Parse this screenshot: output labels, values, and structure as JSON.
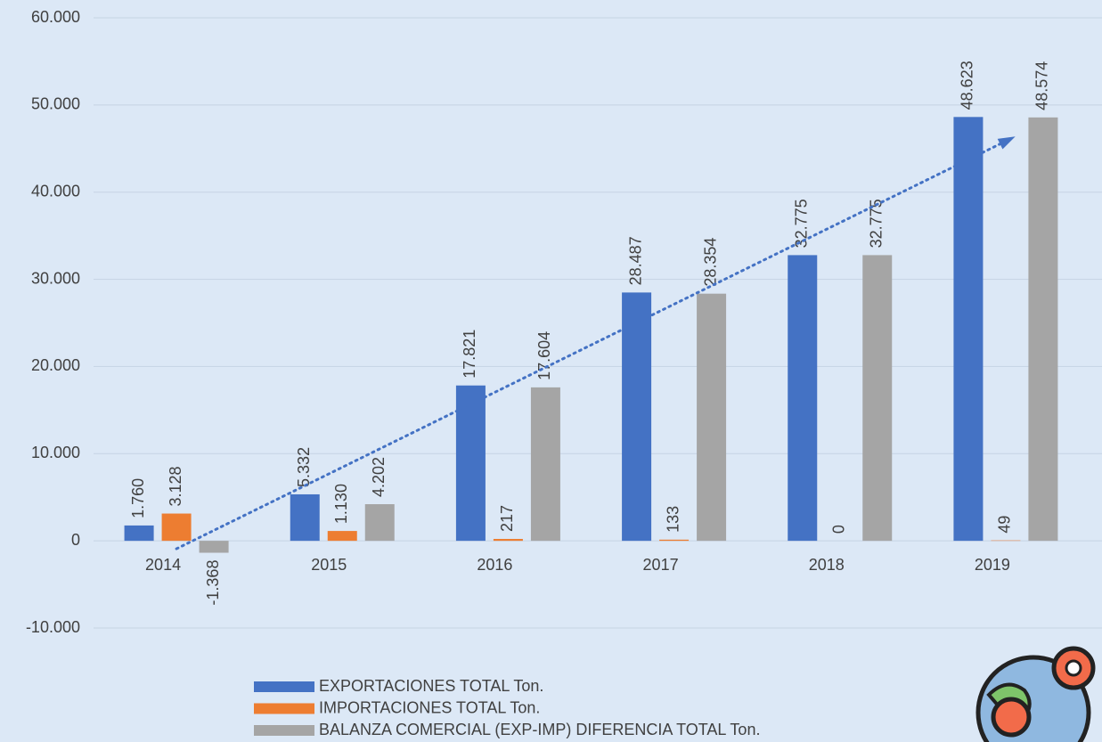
{
  "chart_data": {
    "type": "bar",
    "categories": [
      "2014",
      "2015",
      "2016",
      "2017",
      "2018",
      "2019"
    ],
    "series": [
      {
        "name": "EXPORTACIONES TOTAL Ton.",
        "color": "#4472c4",
        "values": [
          1760,
          5332,
          17821,
          28487,
          32775,
          48623
        ],
        "value_labels": [
          "1.760",
          "5.332",
          "17.821",
          "28.487",
          "32.775",
          "48.623"
        ]
      },
      {
        "name": "IMPORTACIONES TOTAL Ton.",
        "color": "#ed7d31",
        "values": [
          3128,
          1130,
          217,
          133,
          0,
          49
        ],
        "value_labels": [
          "3.128",
          "1.130",
          "217",
          "133",
          "0",
          "49"
        ]
      },
      {
        "name": "BALANZA COMERCIAL (EXP-IMP) DIFERENCIA TOTAL Ton.",
        "color": "#a5a5a5",
        "values": [
          -1368,
          4202,
          17604,
          28354,
          32775,
          48574
        ],
        "value_labels": [
          "-1.368",
          "4.202",
          "17.604",
          "28.354",
          "32.775",
          "48.574"
        ]
      }
    ],
    "ylim": [
      -10000,
      60000
    ],
    "yticks": [
      {
        "value": -10000,
        "label": "-10.000"
      },
      0,
      {
        "value": 10000,
        "label": "10.000"
      },
      {
        "value": 20000,
        "label": "20.000"
      },
      {
        "value": 30000,
        "label": "30.000"
      },
      {
        "value": 40000,
        "label": "40.000"
      },
      {
        "value": 50000,
        "label": "50.000"
      },
      {
        "value": 60000,
        "label": "60.000"
      }
    ],
    "grid": true,
    "trendline": {
      "series": 0,
      "color": "#4472c4"
    },
    "legend": "bottom"
  }
}
